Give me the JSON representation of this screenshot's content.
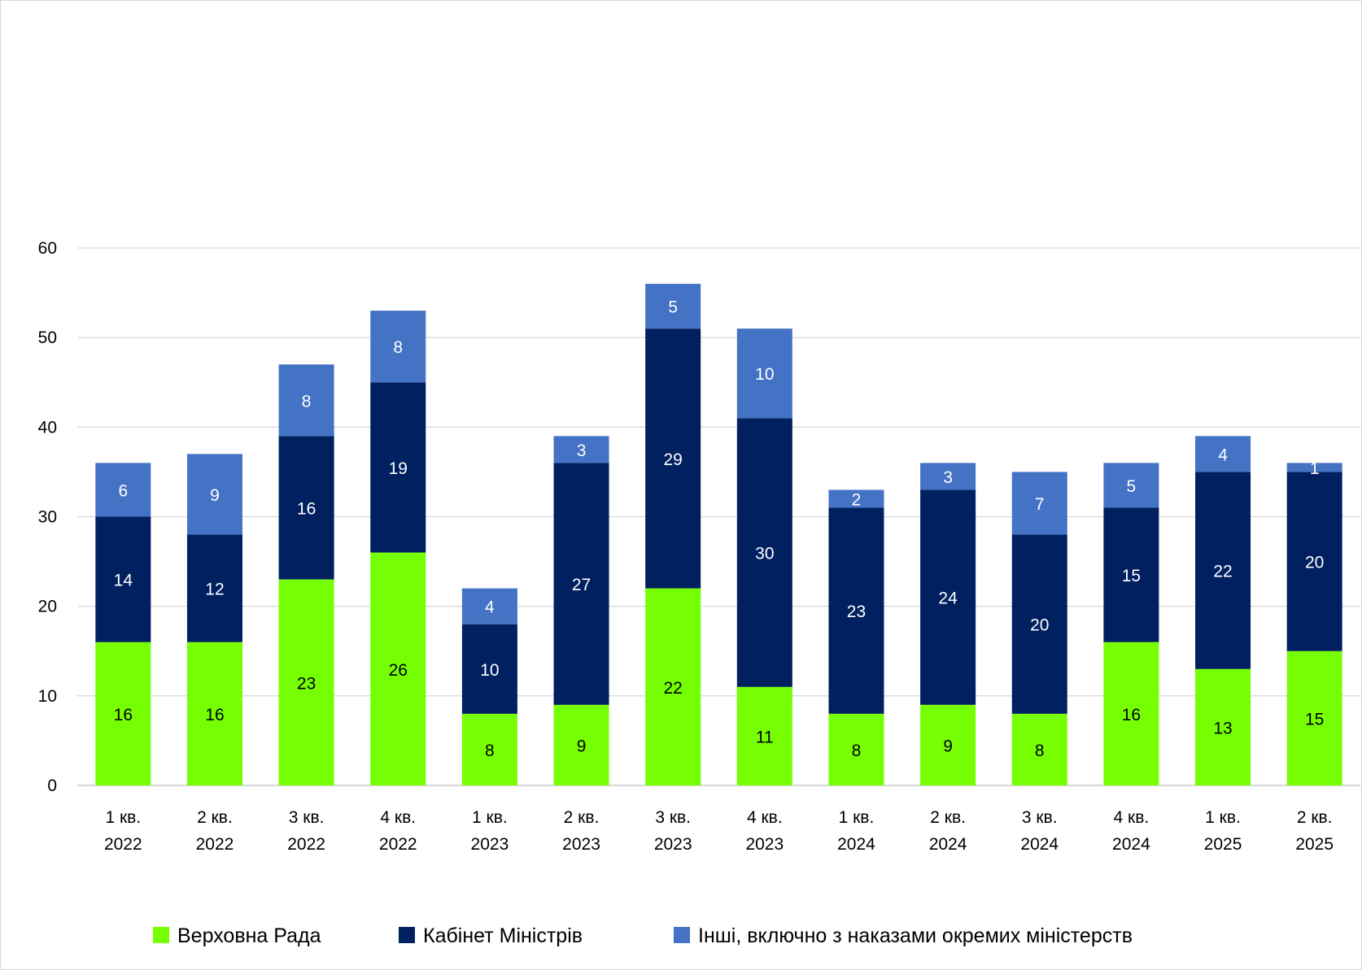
{
  "chart_data": {
    "type": "bar",
    "stacked": true,
    "title": "",
    "xlabel": "",
    "ylabel": "",
    "ylim": [
      0,
      60
    ],
    "yticks": [
      0,
      10,
      20,
      30,
      40,
      50,
      60
    ],
    "grid": true,
    "legend_position": "bottom",
    "categories": [
      [
        "1 кв.",
        "2022"
      ],
      [
        "2 кв.",
        "2022"
      ],
      [
        "3 кв.",
        "2022"
      ],
      [
        "4 кв.",
        "2022"
      ],
      [
        "1 кв.",
        "2023"
      ],
      [
        "2 кв.",
        "2023"
      ],
      [
        "3 кв.",
        "2023"
      ],
      [
        "4 кв.",
        "2023"
      ],
      [
        "1 кв.",
        "2024"
      ],
      [
        "2 кв.",
        "2024"
      ],
      [
        "3 кв.",
        "2024"
      ],
      [
        "4 кв.",
        "2024"
      ],
      [
        "1 кв.",
        "2025"
      ],
      [
        "2 кв.",
        "2025"
      ]
    ],
    "series": [
      {
        "name": "Верховна Рада",
        "color": "#76FF03",
        "label_color": "#000000",
        "values": [
          16,
          16,
          23,
          26,
          8,
          9,
          22,
          11,
          8,
          9,
          8,
          16,
          13,
          15
        ]
      },
      {
        "name": "Кабінет Міністрів",
        "color": "#002060",
        "label_color": "#ffffff",
        "values": [
          14,
          12,
          16,
          19,
          10,
          27,
          29,
          30,
          23,
          24,
          20,
          15,
          22,
          20
        ]
      },
      {
        "name": "Інші, включно з наказами окремих міністерств",
        "color": "#4472C4",
        "label_color": "#ffffff",
        "values": [
          6,
          9,
          8,
          8,
          4,
          3,
          5,
          10,
          2,
          3,
          7,
          5,
          4,
          1
        ]
      }
    ],
    "colors": {
      "grid": "#d9d9d9",
      "axis": "#bfbfbf"
    }
  }
}
